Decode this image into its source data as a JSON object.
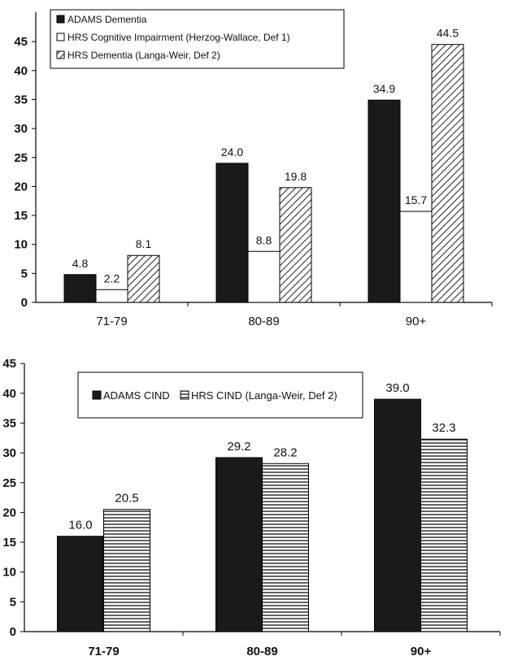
{
  "chart_data": [
    {
      "type": "bar",
      "categories": [
        "71-79",
        "80-89",
        "90+"
      ],
      "series": [
        {
          "name": "ADAMS Dementia",
          "values": [
            4.8,
            24.0,
            34.9
          ],
          "labels": [
            "4.8",
            "24.0",
            "34.9"
          ],
          "pattern": "solid-black"
        },
        {
          "name": "HRS Cognitive Impairment (Herzog-Wallace, Def 1)",
          "values": [
            2.2,
            8.8,
            15.7
          ],
          "labels": [
            "2.2",
            "8.8",
            "15.7"
          ],
          "pattern": "white"
        },
        {
          "name": "HRS Dementia (Langa-Weir, Def 2)",
          "values": [
            8.1,
            19.8,
            44.5
          ],
          "labels": [
            "8.1",
            "19.8",
            "44.5"
          ],
          "pattern": "diagonal-hatch"
        }
      ],
      "yticks": [
        "0",
        "5",
        "10",
        "15",
        "20",
        "25",
        "30",
        "35",
        "40",
        "45"
      ],
      "ylim": [
        0,
        50
      ],
      "legend_position": "top-left",
      "colors": {
        "bar_fill": "#1a1a1a",
        "hatch": "#222222",
        "axis": "#000000"
      }
    },
    {
      "type": "bar",
      "categories": [
        "71-79",
        "80-89",
        "90+"
      ],
      "series": [
        {
          "name": "ADAMS CIND",
          "values": [
            16.0,
            29.2,
            39.0
          ],
          "labels": [
            "16.0",
            "29.2",
            "39.0"
          ],
          "pattern": "solid-black"
        },
        {
          "name": "HRS CIND (Langa-Weir, Def 2)",
          "values": [
            20.5,
            28.2,
            32.3
          ],
          "labels": [
            "20.5",
            "28.2",
            "32.3"
          ],
          "pattern": "horizontal-stripes"
        }
      ],
      "yticks": [
        "0",
        "5",
        "10",
        "15",
        "20",
        "25",
        "30",
        "35",
        "40",
        "45"
      ],
      "ylim": [
        0,
        45
      ],
      "legend_position": "top-left",
      "colors": {
        "bar_fill": "#1a1a1a",
        "stripe": "#222222",
        "axis": "#000000"
      }
    }
  ]
}
